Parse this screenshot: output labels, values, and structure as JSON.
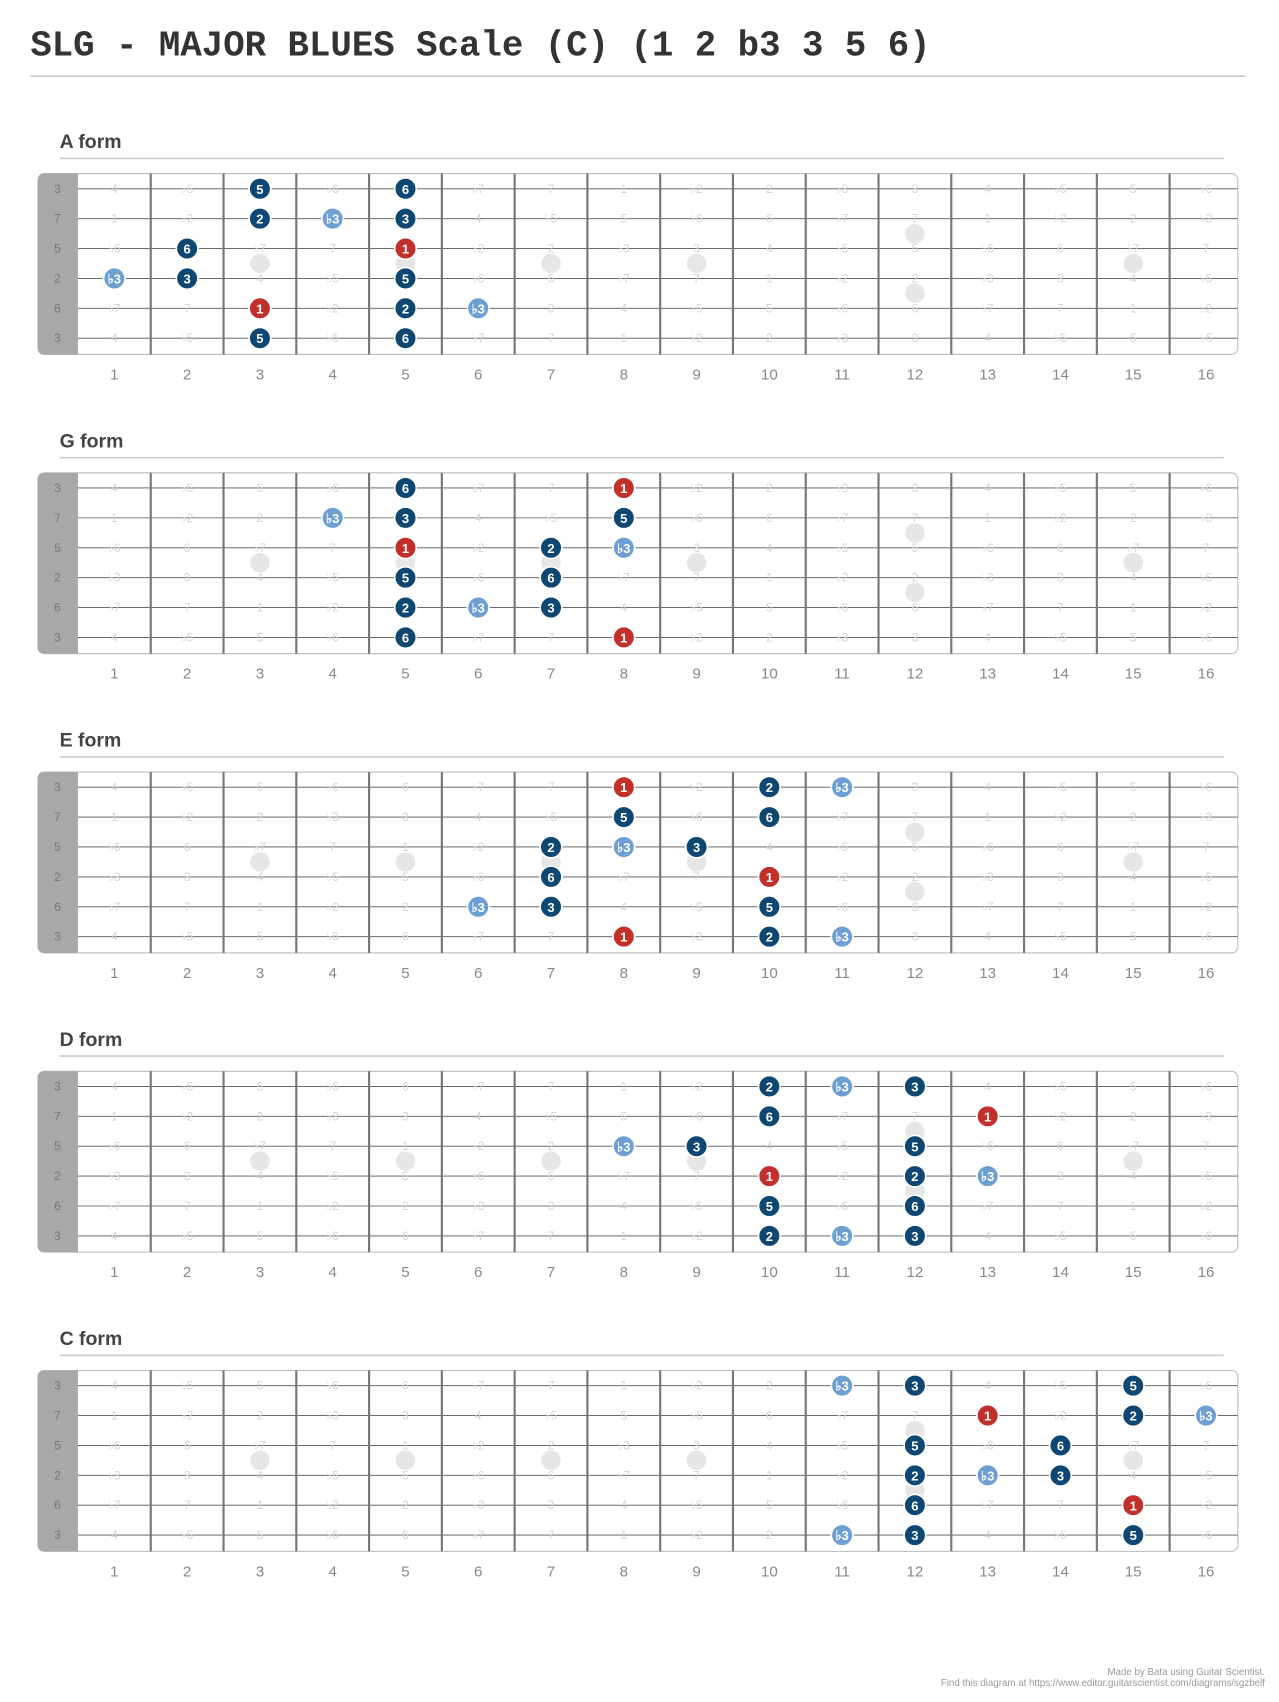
{
  "title": "SLG - MAJOR BLUES Scale (C) (1 2 b3 3 5 6)",
  "open_strings": [
    "3",
    "7",
    "5",
    "2",
    "6",
    "3"
  ],
  "fret_numbers": [
    1,
    2,
    3,
    4,
    5,
    6,
    7,
    8,
    9,
    10,
    11,
    12,
    13,
    14,
    15,
    16
  ],
  "fretboard": [
    [
      "4",
      "♭5",
      "5",
      "♭6",
      "6",
      "♭7",
      "7",
      "1",
      "♭2",
      "2",
      "♭3",
      "3",
      "4",
      "♭5",
      "5",
      "♭6"
    ],
    [
      "1",
      "♭2",
      "2",
      "♭3",
      "3",
      "4",
      "♭5",
      "5",
      "♭6",
      "6",
      "♭7",
      "7",
      "1",
      "♭2",
      "2",
      "♭3"
    ],
    [
      "♭6",
      "6",
      "♭7",
      "7",
      "1",
      "♭2",
      "2",
      "♭3",
      "3",
      "4",
      "♭5",
      "5",
      "♭6",
      "6",
      "♭7",
      "7"
    ],
    [
      "♭3",
      "3",
      "4",
      "♭5",
      "5",
      "♭6",
      "6",
      "♭7",
      "7",
      "1",
      "♭2",
      "2",
      "♭3",
      "3",
      "4",
      "♭5"
    ],
    [
      "♭7",
      "7",
      "1",
      "♭2",
      "2",
      "♭3",
      "3",
      "4",
      "♭5",
      "5",
      "♭6",
      "6",
      "♭7",
      "7",
      "1",
      "♭2"
    ],
    [
      "4",
      "♭5",
      "5",
      "♭6",
      "6",
      "♭7",
      "7",
      "1",
      "♭2",
      "2",
      "♭3",
      "3",
      "4",
      "♭5",
      "5",
      "♭6"
    ]
  ],
  "note_colors": {
    "1": "#c2302c",
    "2": "#0e4772",
    "♭3": "#6d9fd2",
    "3": "#0e4772",
    "5": "#0e4772",
    "6": "#0e4772"
  },
  "forms": [
    {
      "name": "A form",
      "notes": [
        [
          0,
          3,
          "5"
        ],
        [
          0,
          5,
          "6"
        ],
        [
          1,
          3,
          "2"
        ],
        [
          1,
          4,
          "♭3"
        ],
        [
          1,
          5,
          "3"
        ],
        [
          2,
          2,
          "6"
        ],
        [
          2,
          5,
          "1"
        ],
        [
          3,
          1,
          "♭3"
        ],
        [
          3,
          2,
          "3"
        ],
        [
          3,
          5,
          "5"
        ],
        [
          4,
          3,
          "1"
        ],
        [
          4,
          5,
          "2"
        ],
        [
          4,
          6,
          "♭3"
        ],
        [
          5,
          3,
          "5"
        ],
        [
          5,
          5,
          "6"
        ]
      ]
    },
    {
      "name": "G form",
      "notes": [
        [
          0,
          5,
          "6"
        ],
        [
          0,
          8,
          "1"
        ],
        [
          1,
          4,
          "♭3"
        ],
        [
          1,
          5,
          "3"
        ],
        [
          1,
          8,
          "5"
        ],
        [
          2,
          5,
          "1"
        ],
        [
          2,
          7,
          "2"
        ],
        [
          2,
          8,
          "♭3"
        ],
        [
          3,
          5,
          "5"
        ],
        [
          3,
          7,
          "6"
        ],
        [
          4,
          5,
          "2"
        ],
        [
          4,
          6,
          "♭3"
        ],
        [
          4,
          7,
          "3"
        ],
        [
          5,
          5,
          "6"
        ],
        [
          5,
          8,
          "1"
        ]
      ]
    },
    {
      "name": "E form",
      "notes": [
        [
          0,
          8,
          "1"
        ],
        [
          0,
          10,
          "2"
        ],
        [
          0,
          11,
          "♭3"
        ],
        [
          1,
          8,
          "5"
        ],
        [
          1,
          10,
          "6"
        ],
        [
          2,
          7,
          "2"
        ],
        [
          2,
          8,
          "♭3"
        ],
        [
          2,
          9,
          "3"
        ],
        [
          3,
          7,
          "6"
        ],
        [
          3,
          10,
          "1"
        ],
        [
          4,
          6,
          "♭3"
        ],
        [
          4,
          7,
          "3"
        ],
        [
          4,
          10,
          "5"
        ],
        [
          5,
          8,
          "1"
        ],
        [
          5,
          10,
          "2"
        ],
        [
          5,
          11,
          "♭3"
        ]
      ]
    },
    {
      "name": "D form",
      "notes": [
        [
          0,
          10,
          "2"
        ],
        [
          0,
          11,
          "♭3"
        ],
        [
          0,
          12,
          "3"
        ],
        [
          1,
          10,
          "6"
        ],
        [
          1,
          13,
          "1"
        ],
        [
          2,
          8,
          "♭3"
        ],
        [
          2,
          9,
          "3"
        ],
        [
          2,
          12,
          "5"
        ],
        [
          3,
          10,
          "1"
        ],
        [
          3,
          12,
          "2"
        ],
        [
          3,
          13,
          "♭3"
        ],
        [
          4,
          10,
          "5"
        ],
        [
          4,
          12,
          "6"
        ],
        [
          5,
          10,
          "2"
        ],
        [
          5,
          11,
          "♭3"
        ],
        [
          5,
          12,
          "3"
        ]
      ]
    },
    {
      "name": "C form",
      "notes": [
        [
          0,
          11,
          "♭3"
        ],
        [
          0,
          12,
          "3"
        ],
        [
          0,
          15,
          "5"
        ],
        [
          1,
          13,
          "1"
        ],
        [
          1,
          15,
          "2"
        ],
        [
          1,
          16,
          "♭3"
        ],
        [
          2,
          12,
          "5"
        ],
        [
          2,
          14,
          "6"
        ],
        [
          3,
          12,
          "2"
        ],
        [
          3,
          13,
          "♭3"
        ],
        [
          3,
          14,
          "3"
        ],
        [
          4,
          12,
          "6"
        ],
        [
          4,
          15,
          "1"
        ],
        [
          5,
          11,
          "♭3"
        ],
        [
          5,
          12,
          "3"
        ],
        [
          5,
          15,
          "5"
        ]
      ]
    }
  ],
  "footer": [
    "Made by Bata using Guitar Scientist.",
    "Find this diagram at https://www.editor.guitarscientist.com/diagrams/sgzbelf"
  ]
}
